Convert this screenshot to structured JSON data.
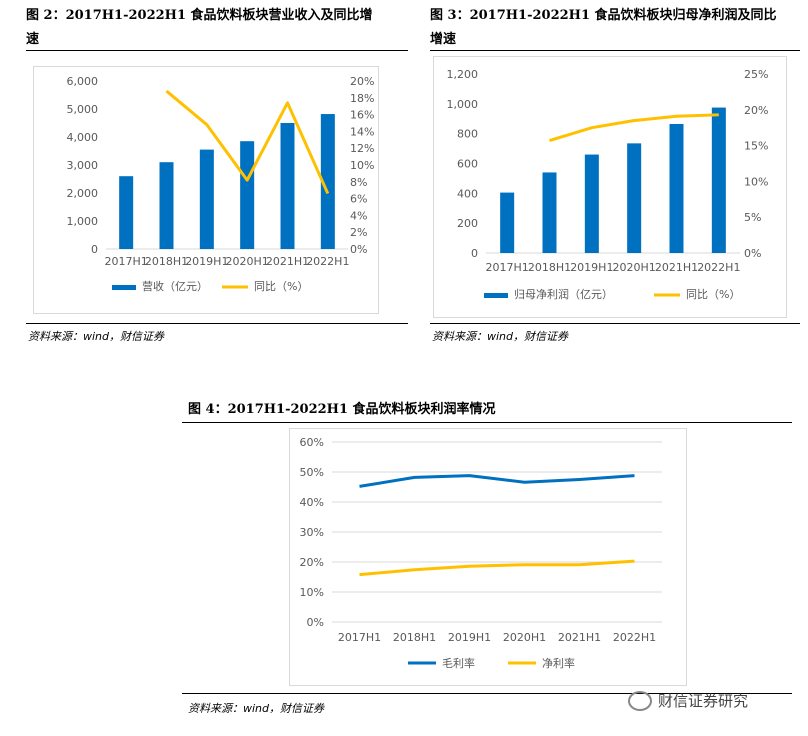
{
  "figure2": {
    "title_line1": "图 2：2017H1-2022H1 食品饮料板块营业收入及同比增",
    "title_line2": "速",
    "source": "资料来源：wind，财信证券"
  },
  "figure3": {
    "title_line1": "图 3：2017H1-2022H1 食品饮料板块归母净利润及同比",
    "title_line2": "增速",
    "source": "资料来源：wind，财信证券"
  },
  "figure4": {
    "title": "图 4：2017H1-2022H1 食品饮料板块利润率情况",
    "source": "资料来源：wind，财信证券"
  },
  "watermark": "财信证券研究",
  "colors": {
    "blue": "#0070C0",
    "yellow": "#FFC000",
    "grid": "#d9d9d9",
    "text": "#595959"
  },
  "chart_data": [
    {
      "type": "bar+line",
      "categories": [
        "2017H1",
        "2018H1",
        "2019H1",
        "2020H1",
        "2021H1",
        "2022H1"
      ],
      "series": [
        {
          "name": "营收（亿元）",
          "type": "bar",
          "axis": "left",
          "values": [
            2600,
            3100,
            3550,
            3850,
            4500,
            4820
          ]
        },
        {
          "name": "同比（%）",
          "type": "line",
          "axis": "right",
          "values": [
            null,
            18.8,
            14.8,
            8.2,
            17.4,
            6.6
          ]
        }
      ],
      "left_axis": {
        "ylim": [
          0,
          6000
        ],
        "ticks": [
          "0",
          "1,000",
          "2,000",
          "3,000",
          "4,000",
          "5,000",
          "6,000"
        ]
      },
      "right_axis": {
        "ylim": [
          0,
          20
        ],
        "ticks": [
          "0%",
          "2%",
          "4%",
          "6%",
          "8%",
          "10%",
          "12%",
          "14%",
          "16%",
          "18%",
          "20%"
        ]
      },
      "legend": [
        "营收（亿元）",
        "同比（%）"
      ]
    },
    {
      "type": "bar+line",
      "categories": [
        "2017H1",
        "2018H1",
        "2019H1",
        "2020H1",
        "2021H1",
        "2022H1"
      ],
      "series": [
        {
          "name": "归母净利润（亿元）",
          "type": "bar",
          "axis": "left",
          "values": [
            405,
            540,
            660,
            735,
            865,
            975
          ]
        },
        {
          "name": "同比（%）",
          "type": "line",
          "axis": "right",
          "values": [
            null,
            15.7,
            17.5,
            18.5,
            19.1,
            19.3
          ]
        }
      ],
      "left_axis": {
        "ylim": [
          0,
          1200
        ],
        "ticks": [
          "0",
          "200",
          "400",
          "600",
          "800",
          "1,000",
          "1,200"
        ]
      },
      "right_axis": {
        "ylim": [
          0,
          25
        ],
        "ticks": [
          "0%",
          "5%",
          "10%",
          "15%",
          "20%",
          "25%"
        ]
      },
      "legend": [
        "归母净利润（亿元）",
        "同比（%）"
      ]
    },
    {
      "type": "line",
      "categories": [
        "2017H1",
        "2018H1",
        "2019H1",
        "2020H1",
        "2021H1",
        "2022H1"
      ],
      "series": [
        {
          "name": "毛利率",
          "values": [
            45.2,
            48.2,
            48.8,
            46.6,
            47.5,
            48.8
          ]
        },
        {
          "name": "净利率",
          "values": [
            15.8,
            17.4,
            18.6,
            19.1,
            19.1,
            20.3
          ]
        }
      ],
      "ylim": [
        0,
        60
      ],
      "ticks": [
        "0%",
        "10%",
        "20%",
        "30%",
        "40%",
        "50%",
        "60%"
      ],
      "legend": [
        "毛利率",
        "净利率"
      ]
    }
  ]
}
